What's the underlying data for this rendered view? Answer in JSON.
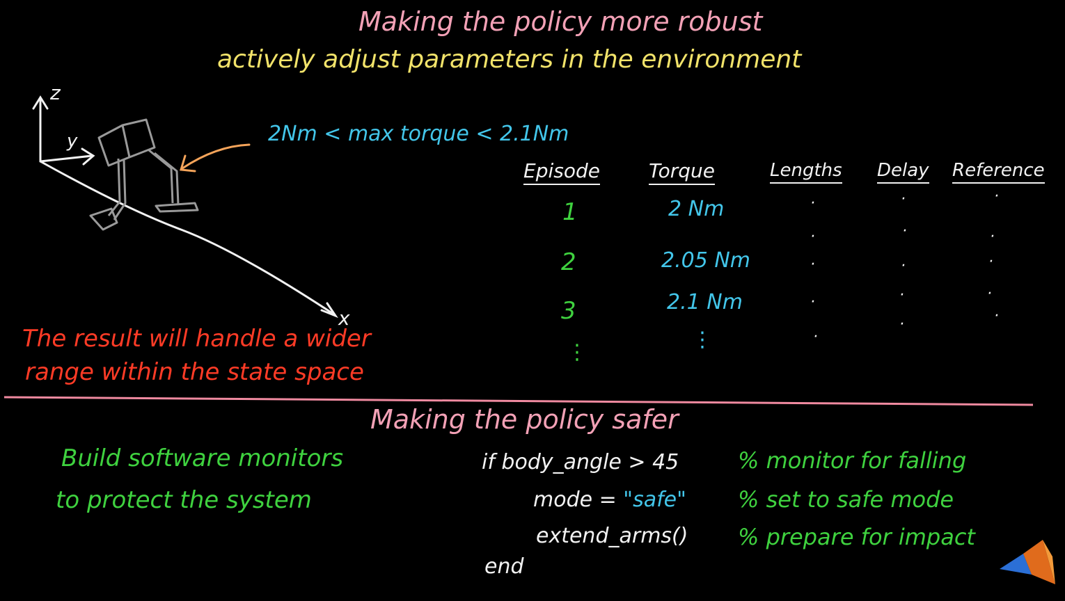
{
  "slide": {
    "title": "Making the policy more robust",
    "subtitle": "actively adjust parameters in the environment",
    "torque_range": "2Nm < max torque < 2.1Nm",
    "axes": {
      "z": "z",
      "y": "y",
      "x": "x"
    },
    "result_line1": "The result will handle a wider",
    "result_line2": "range within the state space"
  },
  "table": {
    "headers": [
      "Episode",
      "Torque",
      "Lengths",
      "Delay",
      "Reference"
    ],
    "rows": [
      {
        "episode": "1",
        "torque": "2 Nm"
      },
      {
        "episode": "2",
        "torque": "2.05 Nm"
      },
      {
        "episode": "3",
        "torque": "2.1 Nm"
      }
    ],
    "ellipsis": "⋮"
  },
  "safety": {
    "title": "Making the policy safer",
    "monitor_line1": "Build software monitors",
    "monitor_line2": "to protect the system",
    "code": {
      "line1": "if body_angle > 45",
      "line2_prefix": "mode = ",
      "line2_value": "\"safe\"",
      "line3": "extend_arms()",
      "line4": "end"
    },
    "comments": {
      "c1": "% monitor for falling",
      "c2": "% set to safe mode",
      "c3": "% prepare for impact"
    }
  },
  "colors": {
    "title": "#f3a1b6",
    "subtitle": "#f2e36a",
    "torque_value": "#43c6ea",
    "arrow": "#f5a45a",
    "result": "#ff3b26",
    "episode": "#3fd23f",
    "divider": "#f08aa0"
  },
  "logo": "matlab-logo-icon"
}
